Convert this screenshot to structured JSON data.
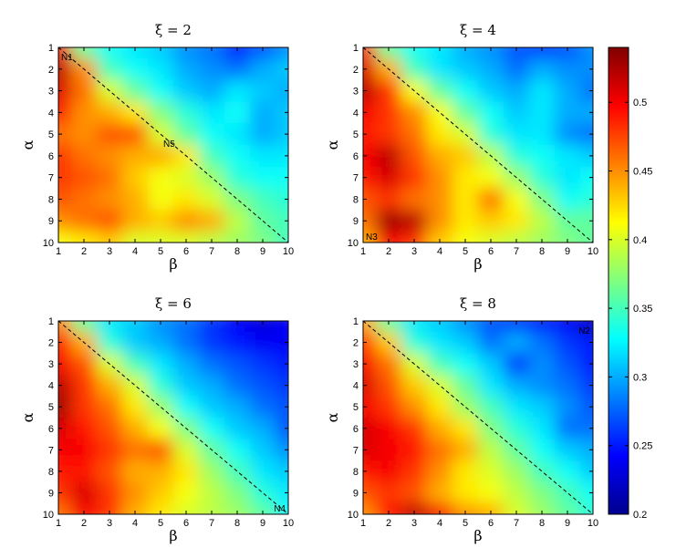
{
  "chart_data": {
    "type": "heatmap",
    "colormap": "jet",
    "grid": false,
    "colorbar": {
      "location": "right",
      "range": [
        0.2,
        0.54
      ],
      "ticks": [
        "0.2",
        "0.25",
        "0.3",
        "0.35",
        "0.4",
        "0.45",
        "0.5"
      ]
    },
    "x_ticks": [
      "1",
      "2",
      "3",
      "4",
      "5",
      "6",
      "7",
      "8",
      "9",
      "10"
    ],
    "y_ticks": [
      "1",
      "2",
      "3",
      "4",
      "5",
      "6",
      "7",
      "8",
      "9",
      "10"
    ],
    "panels": [
      {
        "title": "ξ = 2",
        "xlabel": "β",
        "ylabel": "α",
        "annotations": [
          {
            "text": "N1",
            "beta": 1,
            "alpha": 1
          },
          {
            "text": "N5",
            "beta": 5,
            "alpha": 5
          }
        ],
        "values": [
          [
            0.5,
            0.36,
            0.33,
            0.32,
            0.31,
            0.29,
            0.28,
            0.25,
            0.27,
            0.29
          ],
          [
            0.52,
            0.45,
            0.35,
            0.33,
            0.32,
            0.3,
            0.29,
            0.28,
            0.3,
            0.31
          ],
          [
            0.51,
            0.46,
            0.4,
            0.36,
            0.33,
            0.31,
            0.3,
            0.32,
            0.31,
            0.3
          ],
          [
            0.49,
            0.45,
            0.44,
            0.42,
            0.37,
            0.34,
            0.32,
            0.33,
            0.3,
            0.31
          ],
          [
            0.46,
            0.45,
            0.47,
            0.47,
            0.4,
            0.36,
            0.33,
            0.32,
            0.3,
            0.31
          ],
          [
            0.48,
            0.46,
            0.45,
            0.44,
            0.44,
            0.42,
            0.35,
            0.33,
            0.32,
            0.32
          ],
          [
            0.48,
            0.47,
            0.46,
            0.43,
            0.41,
            0.4,
            0.38,
            0.34,
            0.33,
            0.33
          ],
          [
            0.47,
            0.46,
            0.45,
            0.44,
            0.41,
            0.42,
            0.4,
            0.37,
            0.35,
            0.34
          ],
          [
            0.45,
            0.46,
            0.47,
            0.44,
            0.43,
            0.45,
            0.44,
            0.39,
            0.36,
            0.35
          ],
          [
            0.41,
            0.42,
            0.43,
            0.4,
            0.4,
            0.4,
            0.39,
            0.38,
            0.37,
            0.35
          ]
        ]
      },
      {
        "title": "ξ = 4",
        "xlabel": "β",
        "ylabel": "α",
        "annotations": [
          {
            "text": "N3",
            "beta": 1,
            "alpha": 10
          }
        ],
        "values": [
          [
            0.48,
            0.36,
            0.33,
            0.32,
            0.3,
            0.29,
            0.27,
            0.26,
            0.27,
            0.29
          ],
          [
            0.51,
            0.44,
            0.35,
            0.32,
            0.31,
            0.3,
            0.28,
            0.3,
            0.29,
            0.29
          ],
          [
            0.52,
            0.48,
            0.41,
            0.36,
            0.33,
            0.31,
            0.3,
            0.32,
            0.3,
            0.28
          ],
          [
            0.5,
            0.48,
            0.45,
            0.41,
            0.36,
            0.33,
            0.31,
            0.32,
            0.3,
            0.3
          ],
          [
            0.49,
            0.48,
            0.46,
            0.42,
            0.4,
            0.34,
            0.32,
            0.32,
            0.29,
            0.28
          ],
          [
            0.5,
            0.52,
            0.47,
            0.44,
            0.43,
            0.39,
            0.34,
            0.33,
            0.32,
            0.31
          ],
          [
            0.49,
            0.51,
            0.48,
            0.45,
            0.42,
            0.41,
            0.38,
            0.34,
            0.32,
            0.33
          ],
          [
            0.47,
            0.48,
            0.46,
            0.45,
            0.42,
            0.46,
            0.41,
            0.37,
            0.33,
            0.34
          ],
          [
            0.46,
            0.53,
            0.52,
            0.45,
            0.42,
            0.43,
            0.42,
            0.39,
            0.36,
            0.36
          ],
          [
            0.44,
            0.5,
            0.48,
            0.43,
            0.41,
            0.4,
            0.39,
            0.38,
            0.37,
            0.36
          ]
        ]
      },
      {
        "title": "ξ = 6",
        "xlabel": "β",
        "ylabel": "α",
        "annotations": [
          {
            "text": "N4",
            "beta": 10,
            "alpha": 10
          }
        ],
        "values": [
          [
            0.45,
            0.36,
            0.32,
            0.31,
            0.29,
            0.28,
            0.26,
            0.24,
            0.23,
            0.24
          ],
          [
            0.49,
            0.44,
            0.34,
            0.31,
            0.3,
            0.28,
            0.26,
            0.25,
            0.24,
            0.24
          ],
          [
            0.5,
            0.47,
            0.4,
            0.35,
            0.32,
            0.3,
            0.28,
            0.27,
            0.26,
            0.25
          ],
          [
            0.52,
            0.48,
            0.44,
            0.4,
            0.34,
            0.31,
            0.3,
            0.28,
            0.27,
            0.26
          ],
          [
            0.53,
            0.48,
            0.46,
            0.42,
            0.38,
            0.33,
            0.31,
            0.3,
            0.28,
            0.27
          ],
          [
            0.51,
            0.49,
            0.47,
            0.44,
            0.41,
            0.37,
            0.33,
            0.31,
            0.3,
            0.27
          ],
          [
            0.5,
            0.5,
            0.48,
            0.46,
            0.47,
            0.4,
            0.36,
            0.33,
            0.31,
            0.29
          ],
          [
            0.49,
            0.49,
            0.47,
            0.44,
            0.44,
            0.42,
            0.38,
            0.35,
            0.32,
            0.31
          ],
          [
            0.48,
            0.51,
            0.48,
            0.45,
            0.43,
            0.41,
            0.39,
            0.37,
            0.34,
            0.32
          ],
          [
            0.46,
            0.5,
            0.48,
            0.44,
            0.42,
            0.4,
            0.39,
            0.38,
            0.36,
            0.33
          ]
        ]
      },
      {
        "title": "ξ = 8",
        "xlabel": "β",
        "ylabel": "α",
        "annotations": [
          {
            "text": "N2",
            "beta": 10,
            "alpha": 1
          }
        ],
        "values": [
          [
            0.44,
            0.36,
            0.32,
            0.31,
            0.29,
            0.27,
            0.26,
            0.25,
            0.24,
            0.22
          ],
          [
            0.48,
            0.43,
            0.34,
            0.32,
            0.31,
            0.28,
            0.3,
            0.28,
            0.26,
            0.25
          ],
          [
            0.5,
            0.46,
            0.4,
            0.35,
            0.33,
            0.31,
            0.26,
            0.29,
            0.27,
            0.25
          ],
          [
            0.51,
            0.47,
            0.43,
            0.4,
            0.36,
            0.32,
            0.3,
            0.29,
            0.28,
            0.26
          ],
          [
            0.5,
            0.48,
            0.45,
            0.42,
            0.38,
            0.35,
            0.32,
            0.31,
            0.29,
            0.27
          ],
          [
            0.51,
            0.5,
            0.48,
            0.44,
            0.42,
            0.37,
            0.34,
            0.32,
            0.28,
            0.28
          ],
          [
            0.51,
            0.5,
            0.49,
            0.46,
            0.44,
            0.39,
            0.36,
            0.33,
            0.31,
            0.3
          ],
          [
            0.49,
            0.5,
            0.48,
            0.45,
            0.42,
            0.4,
            0.38,
            0.35,
            0.33,
            0.31
          ],
          [
            0.47,
            0.48,
            0.47,
            0.44,
            0.42,
            0.41,
            0.39,
            0.37,
            0.35,
            0.33
          ],
          [
            0.45,
            0.49,
            0.52,
            0.5,
            0.45,
            0.44,
            0.4,
            0.38,
            0.36,
            0.34
          ]
        ]
      }
    ]
  }
}
